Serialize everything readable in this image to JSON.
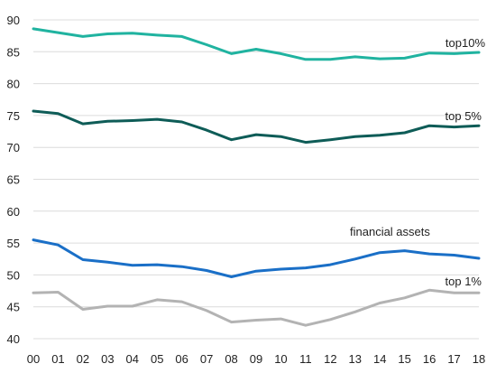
{
  "chart_data": {
    "type": "line",
    "title": "",
    "xlabel": "",
    "ylabel": "",
    "x": [
      "00",
      "01",
      "02",
      "03",
      "04",
      "05",
      "06",
      "07",
      "08",
      "09",
      "10",
      "11",
      "12",
      "13",
      "14",
      "15",
      "16",
      "17",
      "18"
    ],
    "ylim": [
      40,
      90
    ],
    "yticks": [
      40,
      45,
      50,
      55,
      60,
      65,
      70,
      75,
      80,
      85,
      90
    ],
    "grid": "horizontal",
    "legend": "inline labels",
    "series": [
      {
        "name": "top10%",
        "color": "#20b3a0",
        "values": [
          88.6,
          88.0,
          87.4,
          87.8,
          87.9,
          87.6,
          87.4,
          86.1,
          84.7,
          85.4,
          84.7,
          83.8,
          83.8,
          84.2,
          83.9,
          84.0,
          84.8,
          84.7,
          84.9
        ]
      },
      {
        "name": "top 5%",
        "color": "#0e5c57",
        "values": [
          75.7,
          75.3,
          73.7,
          74.1,
          74.2,
          74.4,
          74.0,
          72.7,
          71.2,
          72.0,
          71.7,
          70.8,
          71.2,
          71.7,
          71.9,
          72.3,
          73.4,
          73.2,
          73.4
        ]
      },
      {
        "name": "financial assets",
        "color": "#1a6fc7",
        "values": [
          55.5,
          54.7,
          52.4,
          52.0,
          51.5,
          51.6,
          51.3,
          50.7,
          49.7,
          50.6,
          50.9,
          51.1,
          51.6,
          52.5,
          53.5,
          53.8,
          53.3,
          53.1,
          52.6
        ]
      },
      {
        "name": "top 1%",
        "color": "#b3b3b3",
        "values": [
          47.2,
          47.3,
          44.6,
          45.1,
          45.1,
          46.1,
          45.8,
          44.4,
          42.6,
          42.9,
          43.1,
          42.1,
          43.0,
          44.2,
          45.6,
          46.4,
          47.6,
          47.2,
          47.2
        ]
      }
    ]
  }
}
